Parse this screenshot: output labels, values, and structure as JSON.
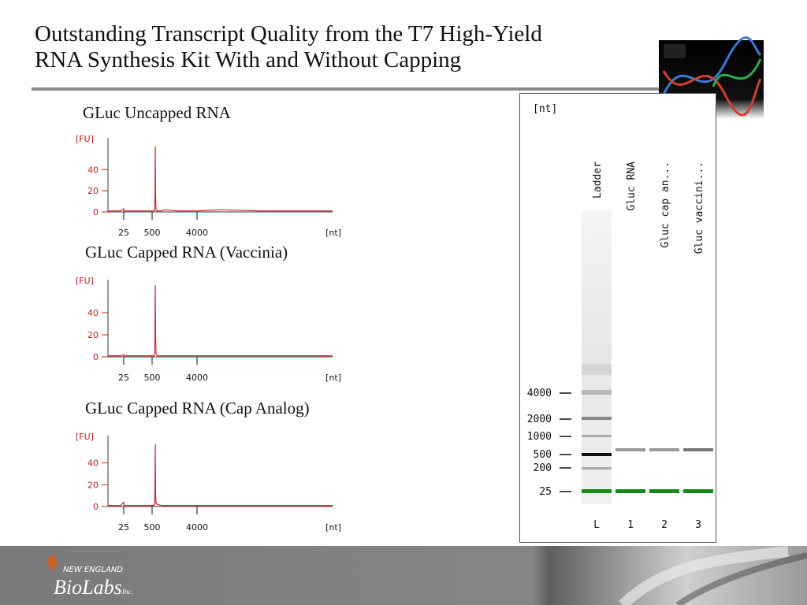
{
  "header": {
    "title_lines": [
      "Outstanding Transcript Quality from the T7 High-Yield",
      "RNA Synthesis Kit With and Without Capping"
    ]
  },
  "chart_data": [
    {
      "type": "line",
      "title": "GLuc Uncapped RNA",
      "y_label": "[FU]",
      "x_label": "[nt]",
      "color": "#cc2a2a",
      "x": [
        10,
        18,
        22,
        25,
        28,
        40,
        200,
        500,
        650,
        700,
        730,
        750,
        770,
        800,
        900,
        1200,
        1500,
        2500,
        4000,
        6000,
        9000,
        15000
      ],
      "values": [
        1,
        1,
        1,
        3,
        1,
        1,
        1,
        1,
        1,
        2,
        20,
        62,
        15,
        2,
        1,
        1,
        2,
        1,
        1,
        2,
        1,
        1
      ],
      "xlim": [
        10,
        15000
      ],
      "xticks": [
        25,
        500,
        4000
      ],
      "ylim": [
        0,
        70
      ],
      "yticks": [
        0,
        20,
        40
      ]
    },
    {
      "type": "line",
      "title": "GLuc Capped RNA (Vaccinia)",
      "y_label": "[FU]",
      "x_label": "[nt]",
      "color": "#cc2a2a",
      "x": [
        10,
        18,
        22,
        25,
        28,
        40,
        200,
        500,
        650,
        700,
        730,
        750,
        770,
        800,
        900,
        1200,
        1500,
        2500,
        4000,
        6000,
        9000,
        15000
      ],
      "values": [
        1,
        1,
        1,
        2,
        1,
        1,
        1,
        1,
        1,
        3,
        30,
        65,
        20,
        3,
        1,
        1,
        1,
        1,
        1,
        1,
        1,
        1
      ],
      "xlim": [
        10,
        15000
      ],
      "xticks": [
        25,
        500,
        4000
      ],
      "ylim": [
        0,
        70
      ],
      "yticks": [
        0,
        20,
        40
      ]
    },
    {
      "type": "line",
      "title": "GLuc Capped RNA (Cap Analog)",
      "y_label": "[FU]",
      "x_label": "[nt]",
      "color": "#cc2a2a",
      "x": [
        10,
        18,
        22,
        25,
        28,
        40,
        200,
        500,
        650,
        700,
        730,
        750,
        770,
        800,
        900,
        1200,
        1500,
        2500,
        4000,
        6000,
        9000,
        15000
      ],
      "values": [
        1,
        1,
        1,
        4,
        1,
        1,
        1,
        1,
        1,
        2,
        25,
        57,
        12,
        3,
        2,
        1,
        1,
        1,
        1,
        1,
        1,
        1
      ],
      "xlim": [
        10,
        15000
      ],
      "xticks": [
        25,
        500,
        4000
      ],
      "ylim": [
        0,
        65
      ],
      "yticks": [
        0,
        20,
        40
      ]
    }
  ],
  "gel": {
    "y_label": "[nt]",
    "lanes": [
      {
        "header": "Ladder",
        "label": "L"
      },
      {
        "header": "Gluc RNA",
        "label": "1"
      },
      {
        "header": "Gluc cap an...",
        "label": "2"
      },
      {
        "header": "Gluc vaccini...",
        "label": "3"
      }
    ],
    "ladder_labels": [
      "4000",
      "2000",
      "1000",
      "500",
      "200",
      "25"
    ]
  },
  "footer": {
    "logo_top": "NEW ENGLAND",
    "logo_main": "BioLabs",
    "logo_suffix": "Inc."
  }
}
